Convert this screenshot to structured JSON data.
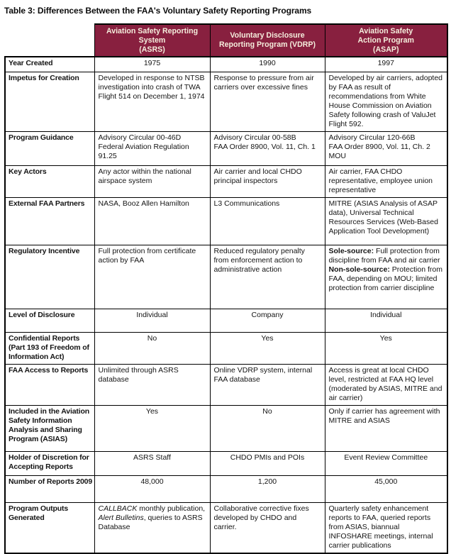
{
  "title": "Table 3: Differences Between the FAA's Voluntary Safety Reporting Programs",
  "colors": {
    "header_bg": "#88203F",
    "header_text": "#F5EEDD",
    "border": "#000000"
  },
  "table": {
    "corner_label": "",
    "columns": [
      "Aviation Safety Reporting\nSystem\n(ASRS)",
      "Voluntary Disclosure\nReporting Program (VDRP)",
      "Aviation Safety\nAction Program\n(ASAP)"
    ],
    "rows": [
      {
        "label": "Year Created",
        "align": [
          "center",
          "center",
          "center"
        ],
        "cells": [
          "1975",
          "1990",
          "1997"
        ]
      },
      {
        "label": "Impetus for Creation",
        "align": [
          "left",
          "left",
          "left"
        ],
        "cells": [
          "Developed in response to NTSB investigation into crash of TWA Flight 514 on December 1, 1974",
          "Response to pressure from air carriers over excessive fines",
          "Developed by air carriers, adopted by FAA as result of recommendations from White House Commission on Aviation Safety following crash of ValuJet Flight 592."
        ]
      },
      {
        "label": "Program Guidance",
        "align": [
          "left",
          "left",
          "left"
        ],
        "cells": [
          "Advisory Circular 00-46D\nFederal Aviation Regulation 91.25",
          "Advisory Circular 00-58B\nFAA Order 8900, Vol. 11, Ch. 1",
          "Advisory Circular 120-66B\nFAA Order 8900, Vol. 11, Ch. 2\nMOU"
        ]
      },
      {
        "label": "Key Actors",
        "align": [
          "left",
          "left",
          "left"
        ],
        "cells": [
          "Any actor within the national airspace system",
          "Air carrier and local CHDO principal inspectors",
          "Air carrier, FAA CHDO representative, employee union representative"
        ]
      },
      {
        "label": "External FAA Partners",
        "align": [
          "left",
          "left",
          "left"
        ],
        "cells": [
          "NASA, Booz Allen Hamilton",
          "L3 Communications",
          "MITRE (ASIAS Analysis of ASAP data), Universal Technical Resources Services (Web-Based Application Tool Development)"
        ]
      },
      {
        "label": "Regulatory Incentive",
        "align": [
          "left",
          "left",
          "left"
        ],
        "cells": [
          "Full protection from certificate action by FAA",
          "Reduced regulatory penalty from enforcement action to administrative action",
          [
            {
              "t": "Sole-source:",
              "b": true
            },
            {
              "t": " Full protection from discipline from FAA and air carrier\n"
            },
            {
              "t": "Non-sole-source:",
              "b": true
            },
            {
              "t": " Protection from FAA, depending on MOU; limited protection from carrier discipline"
            }
          ]
        ]
      },
      {
        "label": "Level of Disclosure",
        "align": [
          "center",
          "center",
          "center"
        ],
        "cells": [
          "Individual",
          "Company",
          "Individual"
        ]
      },
      {
        "label": "Confidential Reports (Part 193 of Freedom of Information Act)",
        "align": [
          "center",
          "center",
          "center"
        ],
        "cells": [
          "No",
          "Yes",
          "Yes"
        ]
      },
      {
        "label": "FAA Access to Reports",
        "align": [
          "left",
          "left",
          "left"
        ],
        "cells": [
          "Unlimited through ASRS database",
          "Online VDRP system, internal FAA database",
          "Access is great at local CHDO level, restricted at FAA HQ level (moderated by ASIAS, MITRE and air carrier)"
        ]
      },
      {
        "label": "Included in the Aviation Safety Information Analysis and Sharing Program (ASIAS)",
        "align": [
          "center",
          "center",
          "left"
        ],
        "cells": [
          "Yes",
          "No",
          "Only if carrier has agreement with MITRE and ASIAS"
        ]
      },
      {
        "label": "Holder of Discretion for Accepting Reports",
        "align": [
          "center",
          "center",
          "center"
        ],
        "cells": [
          "ASRS Staff",
          "CHDO PMIs and POIs",
          "Event Review Committee"
        ]
      },
      {
        "label": "Number of Reports 2009",
        "align": [
          "center",
          "center",
          "center"
        ],
        "cells": [
          "48,000",
          "1,200",
          "45,000"
        ]
      },
      {
        "label": "Program Outputs Generated",
        "align": [
          "left",
          "left",
          "left"
        ],
        "cells": [
          [
            {
              "t": "CALLBACK",
              "i": true
            },
            {
              "t": " monthly publication, "
            },
            {
              "t": "Alert Bulletins",
              "i": true
            },
            {
              "t": ", queries to ASRS Database"
            }
          ],
          "Collaborative corrective fixes developed by CHDO and carrier.",
          "Quarterly safety enhancement reports to FAA, queried reports from ASIAS, biannual INFOSHARE meetings, internal carrier publications"
        ]
      }
    ]
  }
}
